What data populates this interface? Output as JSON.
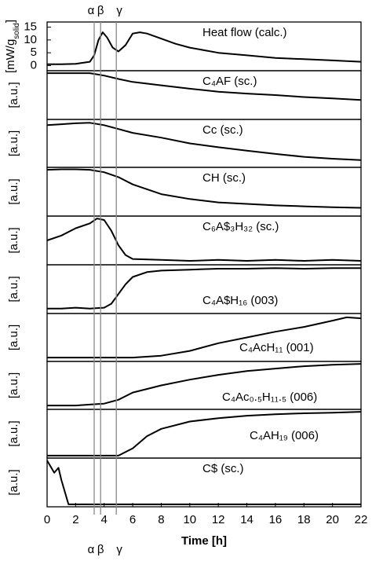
{
  "chart_data": [
    {
      "type": "line",
      "title": "Heat flow (calc.)",
      "ylabel": [
        "[mW/g",
        "solid",
        "]"
      ],
      "ylim": [
        -2,
        17
      ],
      "yticks": [
        0,
        5,
        10,
        15
      ],
      "xlim": [
        0,
        22
      ],
      "vlines": [
        {
          "label": "α",
          "x": 3.3
        },
        {
          "label": "β",
          "x": 3.75
        },
        {
          "label": "γ",
          "x": 4.85
        }
      ],
      "color": "#000000",
      "x": [
        0,
        1,
        2,
        3,
        3.3,
        3.6,
        3.9,
        4.2,
        4.6,
        5,
        5.5,
        6,
        6.5,
        7,
        8,
        9,
        10,
        12,
        14,
        16,
        18,
        20,
        22
      ],
      "values": [
        0.5,
        0.5,
        0.7,
        1.5,
        4,
        10,
        13,
        11,
        7,
        5.5,
        8,
        12.5,
        13,
        12.5,
        10.5,
        8.5,
        7,
        5,
        4,
        3,
        2.5,
        2,
        1.5
      ]
    },
    {
      "type": "line",
      "title": "C₄AF (sc.)",
      "ylabel": "[a.u.]",
      "ylim": [
        0,
        1
      ],
      "xlim": [
        0,
        22
      ],
      "color": "#000000",
      "x": [
        0,
        1,
        2,
        3,
        4,
        5,
        6,
        8,
        10,
        12,
        14,
        16,
        18,
        20,
        22
      ],
      "values": [
        0.95,
        0.95,
        0.95,
        0.95,
        0.9,
        0.83,
        0.77,
        0.7,
        0.63,
        0.57,
        0.53,
        0.5,
        0.46,
        0.43,
        0.4
      ]
    },
    {
      "type": "line",
      "title": "Cc (sc.)",
      "ylabel": "[a.u.]",
      "ylim": [
        0,
        1
      ],
      "xlim": [
        0,
        22
      ],
      "color": "#000000",
      "x": [
        0,
        1,
        2,
        3,
        4,
        5,
        6,
        8,
        10,
        12,
        14,
        16,
        18,
        20,
        22
      ],
      "values": [
        0.88,
        0.9,
        0.92,
        0.93,
        0.88,
        0.8,
        0.72,
        0.62,
        0.5,
        0.42,
        0.35,
        0.28,
        0.22,
        0.18,
        0.15
      ]
    },
    {
      "type": "line",
      "title": "CH (sc.)",
      "ylabel": "[a.u.]",
      "ylim": [
        0,
        1
      ],
      "xlim": [
        0,
        22
      ],
      "color": "#000000",
      "x": [
        0,
        1,
        2,
        3,
        4,
        5,
        6,
        8,
        10,
        12,
        14,
        16,
        18,
        20,
        22
      ],
      "values": [
        0.95,
        0.96,
        0.96,
        0.95,
        0.9,
        0.8,
        0.65,
        0.45,
        0.35,
        0.28,
        0.25,
        0.22,
        0.2,
        0.18,
        0.17
      ]
    },
    {
      "type": "line",
      "title": "C₆A$₃H₃₂ (sc.)",
      "ylabel": "[a.u.]",
      "ylim": [
        0,
        1
      ],
      "xlim": [
        0,
        22
      ],
      "color": "#000000",
      "x": [
        0,
        1,
        2,
        3,
        3.5,
        4,
        4.5,
        5,
        5.5,
        6,
        8,
        10,
        12,
        14,
        16,
        18,
        20,
        22
      ],
      "values": [
        0.5,
        0.6,
        0.75,
        0.85,
        0.95,
        0.92,
        0.7,
        0.4,
        0.2,
        0.12,
        0.1,
        0.08,
        0.1,
        0.08,
        0.1,
        0.08,
        0.1,
        0.08
      ]
    },
    {
      "type": "line",
      "title": "C₄A$H₁₆ (003)",
      "ylabel": "[a.u.]",
      "ylim": [
        0,
        1
      ],
      "xlim": [
        0,
        22
      ],
      "color": "#000000",
      "x": [
        0,
        1,
        2,
        3,
        4,
        4.5,
        5,
        5.5,
        6,
        7,
        8,
        10,
        12,
        14,
        16,
        18,
        20,
        22
      ],
      "values": [
        0.1,
        0.1,
        0.12,
        0.1,
        0.12,
        0.2,
        0.4,
        0.6,
        0.75,
        0.85,
        0.88,
        0.9,
        0.92,
        0.92,
        0.93,
        0.92,
        0.93,
        0.93
      ]
    },
    {
      "type": "line",
      "title": "C₄AcH₁₁ (001)",
      "ylabel": "[a.u.]",
      "ylim": [
        0,
        1
      ],
      "xlim": [
        0,
        22
      ],
      "color": "#000000",
      "x": [
        0,
        2,
        4,
        6,
        8,
        10,
        12,
        14,
        16,
        18,
        20,
        21,
        22
      ],
      "values": [
        0.08,
        0.08,
        0.08,
        0.08,
        0.12,
        0.22,
        0.38,
        0.5,
        0.62,
        0.72,
        0.85,
        0.92,
        0.9
      ]
    },
    {
      "type": "line",
      "title": "C₄Ac₀.₅H₁₁.₅ (006)",
      "ylabel": "[a.u.]",
      "ylim": [
        0,
        1
      ],
      "xlim": [
        0,
        22
      ],
      "color": "#000000",
      "x": [
        0,
        2,
        3,
        4,
        5,
        6,
        8,
        10,
        12,
        14,
        16,
        18,
        20,
        22
      ],
      "values": [
        0.08,
        0.08,
        0.1,
        0.12,
        0.2,
        0.35,
        0.5,
        0.62,
        0.72,
        0.8,
        0.85,
        0.9,
        0.93,
        0.95
      ]
    },
    {
      "type": "line",
      "title": "C₄AH₁₉ (006)",
      "ylabel": "[a.u.]",
      "ylim": [
        0,
        1
      ],
      "xlim": [
        0,
        22
      ],
      "color": "#000000",
      "x": [
        0,
        2,
        4,
        5,
        6,
        7,
        8,
        10,
        12,
        14,
        16,
        18,
        20,
        22
      ],
      "values": [
        0.05,
        0.05,
        0.05,
        0.05,
        0.2,
        0.45,
        0.6,
        0.75,
        0.82,
        0.87,
        0.9,
        0.92,
        0.93,
        0.95
      ]
    },
    {
      "type": "line",
      "title": "C$ (sc.)",
      "ylabel": "[a.u.]",
      "ylim": [
        0,
        1
      ],
      "xlim": [
        0,
        22
      ],
      "color": "#000000",
      "xlabel": "Time [h]",
      "xticks": [
        0,
        2,
        4,
        6,
        8,
        10,
        12,
        14,
        16,
        18,
        20,
        22
      ],
      "x": [
        0,
        0.5,
        0.8,
        1,
        1.5,
        2,
        22
      ],
      "values": [
        0.95,
        0.7,
        0.8,
        0.55,
        0.05,
        0.05,
        0.05
      ]
    }
  ]
}
